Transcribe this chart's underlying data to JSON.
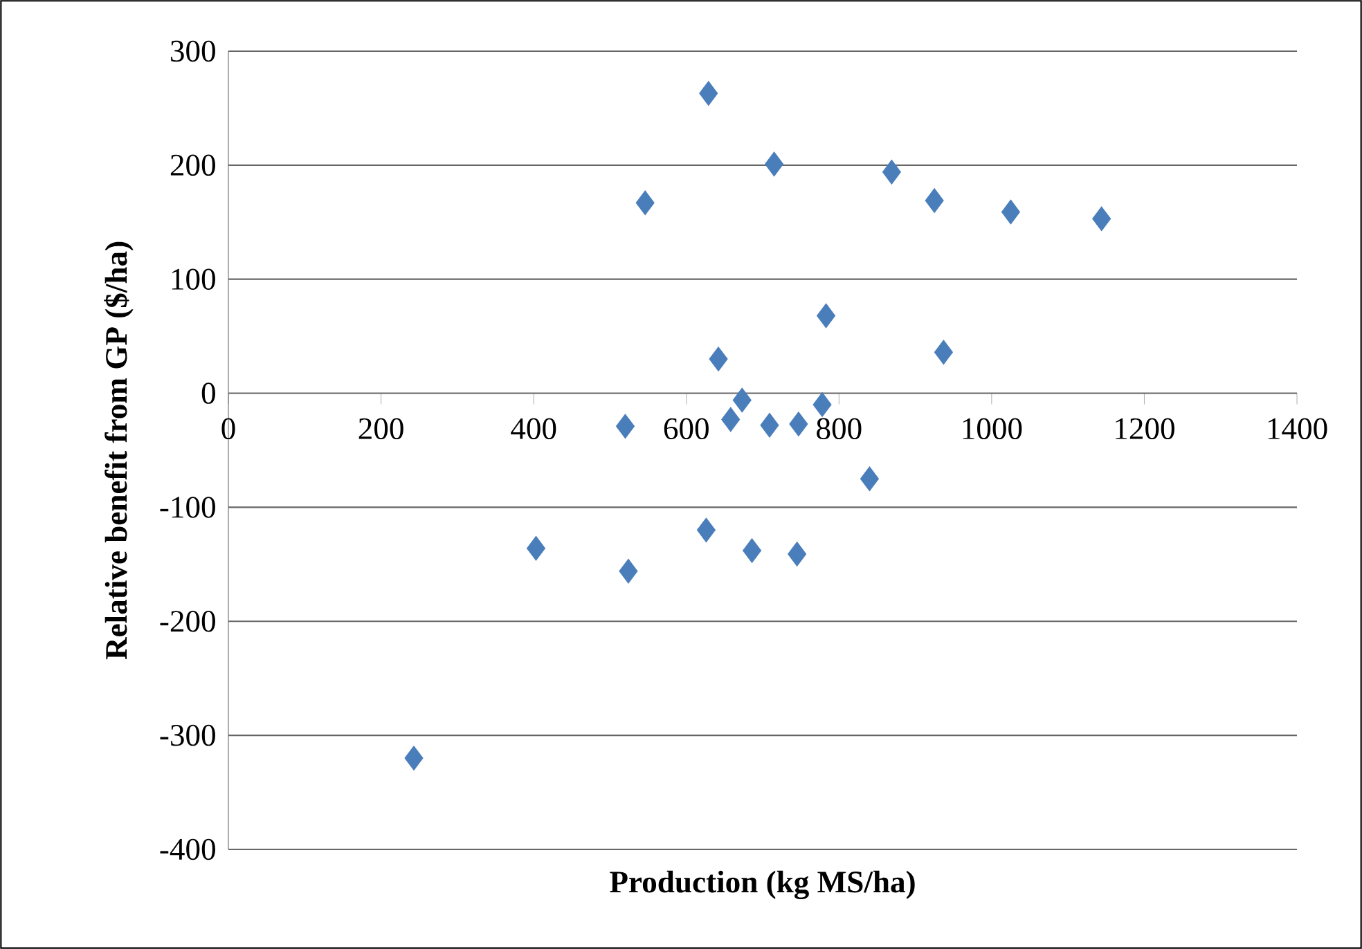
{
  "chart_data": {
    "type": "scatter",
    "xlabel": "Production (kg MS/ha)",
    "ylabel": "Relative benefit from GP ($/ha)",
    "x": [
      243,
      403,
      520,
      524,
      546,
      629,
      626,
      642,
      658,
      673,
      686,
      709,
      715,
      747,
      745,
      778,
      783,
      840,
      869,
      925,
      937,
      1025,
      1144
    ],
    "series": [
      {
        "color": "#4a7ebb",
        "values": [
          -320,
          -136,
          -29,
          -156,
          167,
          263,
          -120,
          30,
          -23,
          -6,
          -138,
          -28,
          201,
          -27,
          -141,
          -10,
          68,
          -75,
          194,
          169,
          36,
          159,
          153
        ]
      }
    ],
    "xlim": [
      0,
      1400
    ],
    "ylim": [
      -400,
      300
    ],
    "xticks": [
      0,
      200,
      400,
      600,
      800,
      1000,
      1200,
      1400
    ],
    "yticks": [
      -400,
      -300,
      -200,
      -100,
      0,
      100,
      200,
      300
    ],
    "grid": "y",
    "marker": "diamond"
  }
}
